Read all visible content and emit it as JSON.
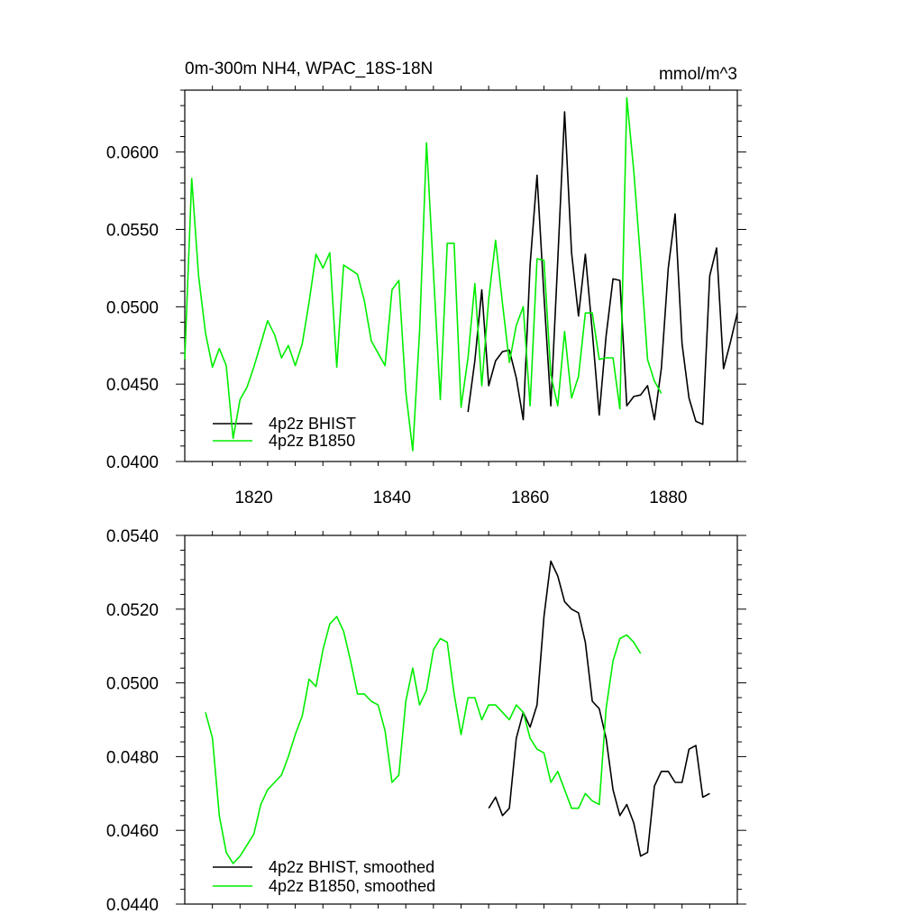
{
  "colors": {
    "bhist": "#000000",
    "b1850": "#00ee00",
    "axis": "#000000",
    "background": "#ffffff"
  },
  "chart_data": [
    {
      "type": "line",
      "title": "0m-300m NH4, WPAC_18S-18N",
      "units": "mmol/m^3",
      "xlim": [
        1810,
        1890
      ],
      "ylim": [
        0.04,
        0.064
      ],
      "xticks": [
        1820,
        1840,
        1860,
        1880
      ],
      "yticks": [
        0.04,
        0.045,
        0.05,
        0.055,
        0.06
      ],
      "ytick_labels": [
        "0.0400",
        "0.0450",
        "0.0500",
        "0.0550",
        "0.0600"
      ],
      "legend_position": "bottom-left",
      "grid": false,
      "series": [
        {
          "name": "4p2z BHIST",
          "color": "#000000",
          "x": [
            1851,
            1852,
            1853,
            1854,
            1855,
            1856,
            1857,
            1858,
            1859,
            1860,
            1861,
            1862,
            1863,
            1864,
            1865,
            1866,
            1867,
            1868,
            1869,
            1870,
            1871,
            1872,
            1873,
            1874,
            1875,
            1876,
            1877,
            1878,
            1879,
            1880,
            1881,
            1882,
            1883,
            1884,
            1885,
            1886,
            1887,
            1888,
            1889,
            1890
          ],
          "y": [
            0.0432,
            0.0465,
            0.0511,
            0.0449,
            0.0465,
            0.0471,
            0.0472,
            0.0454,
            0.0427,
            0.0527,
            0.0585,
            0.0507,
            0.0436,
            0.053,
            0.0626,
            0.0535,
            0.0494,
            0.0534,
            0.0484,
            0.043,
            0.0481,
            0.0518,
            0.0517,
            0.0436,
            0.0442,
            0.0443,
            0.0449,
            0.0427,
            0.046,
            0.0525,
            0.056,
            0.0476,
            0.0441,
            0.0426,
            0.0424,
            0.052,
            0.0538,
            0.046,
            0.0477,
            0.0496
          ]
        },
        {
          "name": "4p2z B1850",
          "color": "#00ee00",
          "x": [
            1810,
            1811,
            1812,
            1813,
            1814,
            1815,
            1816,
            1817,
            1818,
            1819,
            1820,
            1821,
            1822,
            1823,
            1824,
            1825,
            1826,
            1827,
            1828,
            1829,
            1830,
            1831,
            1832,
            1833,
            1834,
            1835,
            1836,
            1837,
            1838,
            1839,
            1840,
            1841,
            1842,
            1843,
            1844,
            1845,
            1846,
            1847,
            1848,
            1849,
            1850,
            1851,
            1852,
            1853,
            1854,
            1855,
            1856,
            1857,
            1858,
            1859,
            1860,
            1861,
            1862,
            1863,
            1864,
            1865,
            1866,
            1867,
            1868,
            1869,
            1870,
            1871,
            1872,
            1873,
            1874,
            1875,
            1876,
            1877,
            1878,
            1879
          ],
          "y": [
            0.0466,
            0.0583,
            0.052,
            0.0483,
            0.0461,
            0.0473,
            0.0462,
            0.0415,
            0.044,
            0.0448,
            0.0461,
            0.0476,
            0.0491,
            0.0482,
            0.0467,
            0.0475,
            0.0462,
            0.0476,
            0.0503,
            0.0534,
            0.0525,
            0.0535,
            0.0461,
            0.0527,
            0.0524,
            0.0521,
            0.0504,
            0.0478,
            0.047,
            0.0462,
            0.0511,
            0.0517,
            0.0445,
            0.0407,
            0.0484,
            0.0606,
            0.0522,
            0.044,
            0.0541,
            0.0541,
            0.0435,
            0.0467,
            0.0515,
            0.0449,
            0.0505,
            0.0543,
            0.0502,
            0.0464,
            0.0488,
            0.05,
            0.0436,
            0.0531,
            0.053,
            0.0456,
            0.0436,
            0.0484,
            0.0441,
            0.0455,
            0.0496,
            0.0496,
            0.0466,
            0.0467,
            0.0467,
            0.0434,
            0.0635,
            0.0588,
            0.053,
            0.0466,
            0.0452,
            0.0444
          ]
        }
      ]
    },
    {
      "type": "line",
      "xlim": [
        1810,
        1890
      ],
      "ylim": [
        0.044,
        0.054
      ],
      "xticks": [
        1820,
        1840,
        1860,
        1880
      ],
      "yticks": [
        0.044,
        0.046,
        0.048,
        0.05,
        0.052,
        0.054
      ],
      "ytick_labels": [
        "0.0440",
        "0.0460",
        "0.0480",
        "0.0500",
        "0.0520",
        "0.0540"
      ],
      "legend_position": "bottom-left",
      "grid": false,
      "series": [
        {
          "name": "4p2z BHIST, smoothed",
          "color": "#000000",
          "x": [
            1854,
            1855,
            1856,
            1857,
            1858,
            1859,
            1860,
            1861,
            1862,
            1863,
            1864,
            1865,
            1866,
            1867,
            1868,
            1869,
            1870,
            1871,
            1872,
            1873,
            1874,
            1875,
            1876,
            1877,
            1878,
            1879,
            1880,
            1881,
            1882,
            1883,
            1884,
            1885,
            1886
          ],
          "y": [
            0.0466,
            0.0469,
            0.0464,
            0.0466,
            0.0485,
            0.0492,
            0.0488,
            0.0494,
            0.0518,
            0.0533,
            0.0529,
            0.0522,
            0.052,
            0.0519,
            0.0511,
            0.0495,
            0.0493,
            0.0485,
            0.0471,
            0.0464,
            0.0467,
            0.0462,
            0.0453,
            0.0454,
            0.0472,
            0.0476,
            0.0476,
            0.0473,
            0.0473,
            0.0482,
            0.0483,
            0.0469,
            0.047
          ]
        },
        {
          "name": "4p2z B1850, smoothed",
          "color": "#00ee00",
          "x": [
            1813,
            1814,
            1815,
            1816,
            1817,
            1818,
            1819,
            1820,
            1821,
            1822,
            1823,
            1824,
            1825,
            1826,
            1827,
            1828,
            1829,
            1830,
            1831,
            1832,
            1833,
            1834,
            1835,
            1836,
            1837,
            1838,
            1839,
            1840,
            1841,
            1842,
            1843,
            1844,
            1845,
            1846,
            1847,
            1848,
            1849,
            1850,
            1851,
            1852,
            1853,
            1854,
            1855,
            1856,
            1857,
            1858,
            1859,
            1860,
            1861,
            1862,
            1863,
            1864,
            1865,
            1866,
            1867,
            1868,
            1869,
            1870,
            1871,
            1872,
            1873,
            1874,
            1875,
            1876
          ],
          "y": [
            0.0492,
            0.0485,
            0.0464,
            0.0454,
            0.0451,
            0.0453,
            0.0456,
            0.0459,
            0.0467,
            0.0471,
            0.0473,
            0.0475,
            0.048,
            0.0486,
            0.0491,
            0.0501,
            0.0499,
            0.0509,
            0.0516,
            0.0518,
            0.0514,
            0.0506,
            0.0497,
            0.0497,
            0.0495,
            0.0494,
            0.0487,
            0.0473,
            0.0475,
            0.0495,
            0.0504,
            0.0494,
            0.0498,
            0.0509,
            0.0512,
            0.0511,
            0.0497,
            0.0486,
            0.0496,
            0.0496,
            0.049,
            0.0494,
            0.0494,
            0.0492,
            0.049,
            0.0494,
            0.0492,
            0.0485,
            0.0482,
            0.0481,
            0.0473,
            0.0476,
            0.0471,
            0.0466,
            0.0466,
            0.047,
            0.0468,
            0.0467,
            0.0493,
            0.0506,
            0.0512,
            0.0513,
            0.0511,
            0.0508
          ]
        }
      ]
    }
  ]
}
